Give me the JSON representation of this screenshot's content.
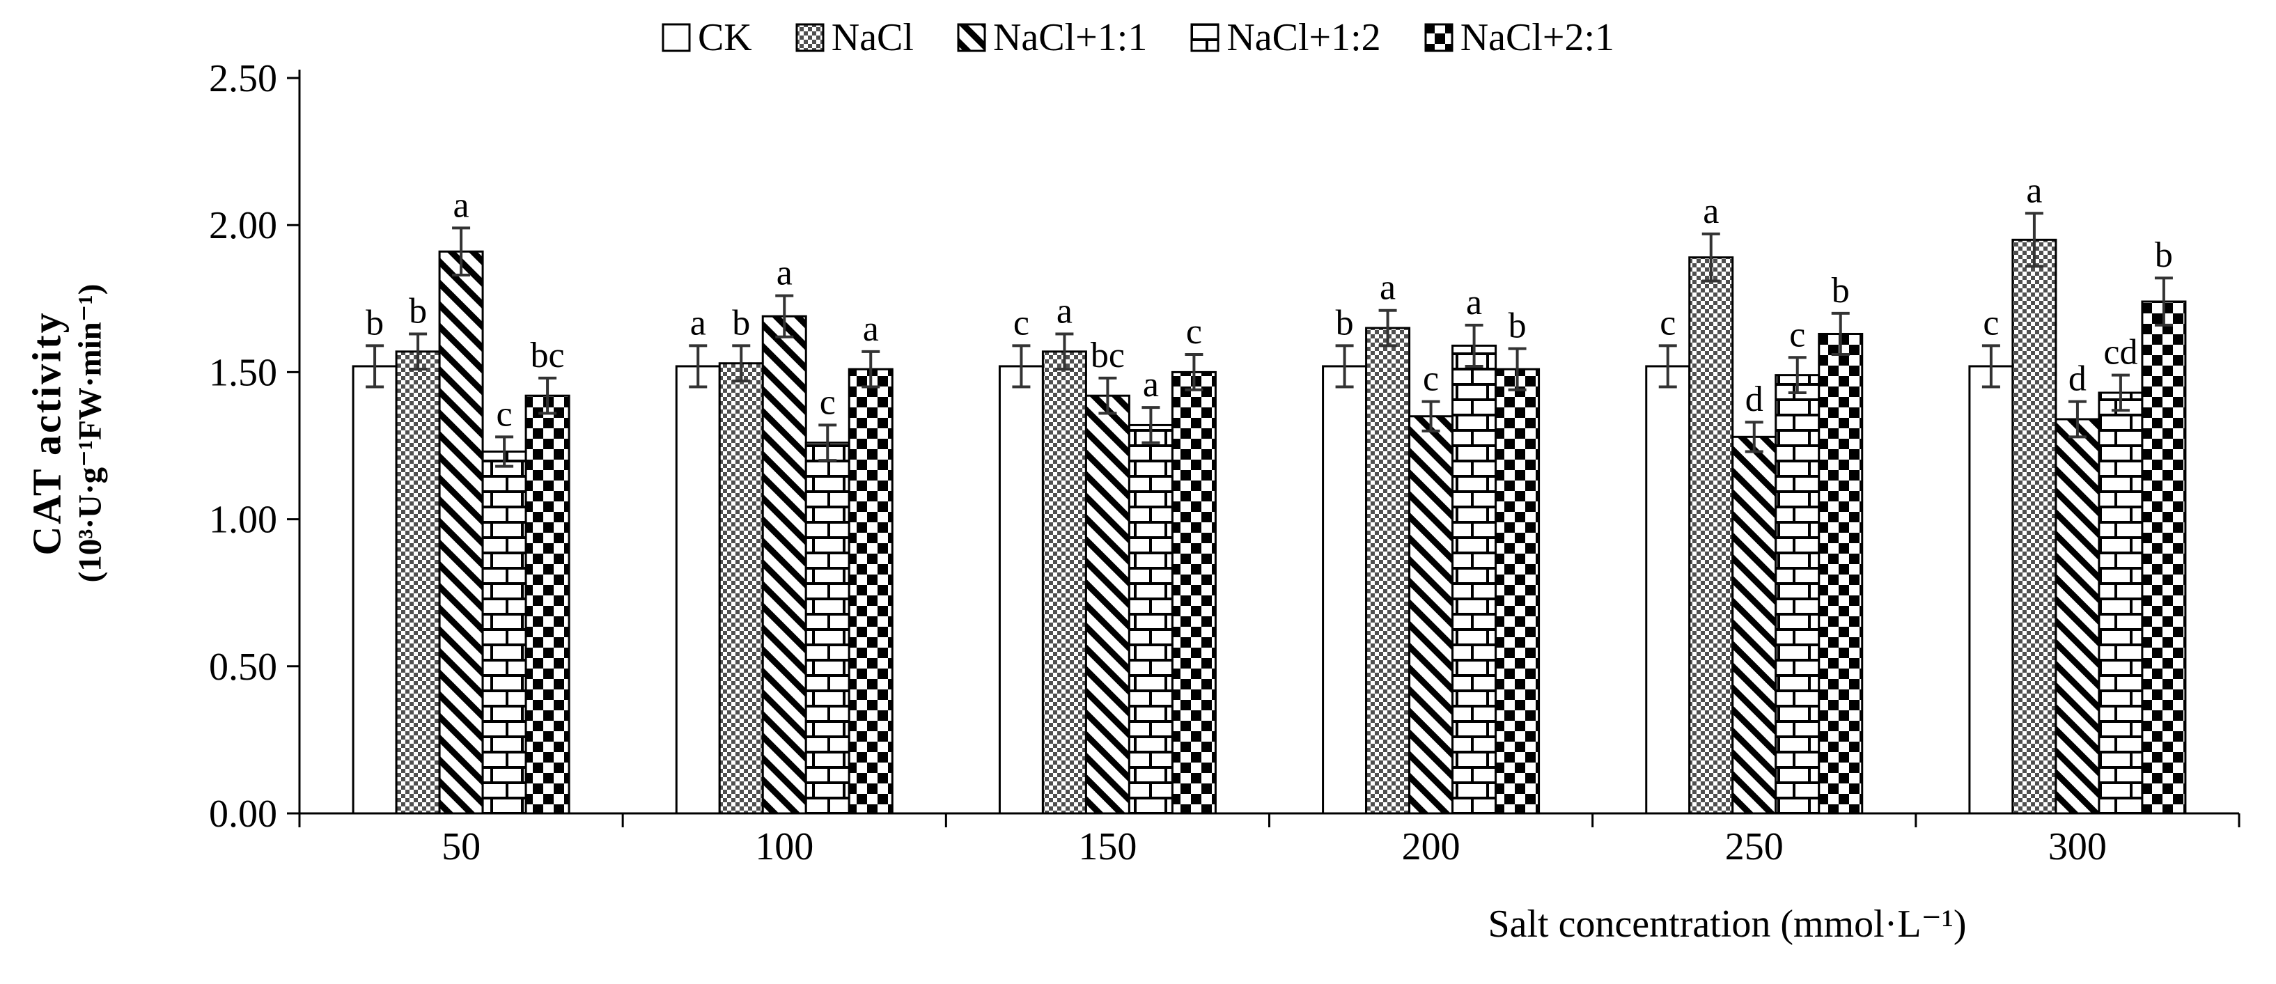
{
  "figure": {
    "description": "Grouped bar chart of CAT activity under different salt treatments"
  },
  "axes": {
    "y_title_line1": "CAT activity",
    "y_title_line2": "(10³·U·g⁻¹FW·min⁻¹)",
    "x_title": "Salt concentration (mmol·L⁻¹)",
    "y_ticks": [
      "0.00",
      "0.50",
      "1.00",
      "1.50",
      "2.00",
      "2.50"
    ],
    "x_ticks": [
      "50",
      "100",
      "150",
      "200",
      "250",
      "300"
    ]
  },
  "legend": {
    "items": [
      {
        "label": "CK",
        "pattern": "plain"
      },
      {
        "label": "NaCl",
        "pattern": "fine-checker"
      },
      {
        "label": "NaCl+1:1",
        "pattern": "diagonal"
      },
      {
        "label": "NaCl+1:2",
        "pattern": "brick"
      },
      {
        "label": "NaCl+2:1",
        "pattern": "checkerboard"
      }
    ]
  },
  "chart_data": {
    "type": "bar",
    "title": "",
    "categories": [
      "50",
      "100",
      "150",
      "200",
      "250",
      "300"
    ],
    "xlabel": "Salt concentration (mmol·L⁻¹)",
    "ylabel": "CAT activity (10³·U·g⁻¹FW·min⁻¹)",
    "ylim": [
      0,
      2.5
    ],
    "ytick_step": 0.5,
    "grid": false,
    "legend_position": "top-center",
    "error_bars": true,
    "bar_stroke": "#000000",
    "bar_fill_base": "#ffffff",
    "series": [
      {
        "name": "CK",
        "pattern": "plain",
        "values": [
          1.52,
          1.52,
          1.52,
          1.52,
          1.52,
          1.52
        ],
        "errors": [
          0.07,
          0.07,
          0.07,
          0.07,
          0.07,
          0.07
        ],
        "sig_letters": [
          "b",
          "a",
          "c",
          "b",
          "c",
          "c"
        ]
      },
      {
        "name": "NaCl",
        "pattern": "fine-checker",
        "values": [
          1.57,
          1.53,
          1.57,
          1.65,
          1.89,
          1.95
        ],
        "errors": [
          0.06,
          0.06,
          0.06,
          0.06,
          0.08,
          0.09
        ],
        "sig_letters": [
          "b",
          "b",
          "a",
          "a",
          "a",
          "a"
        ]
      },
      {
        "name": "NaCl+1:1",
        "pattern": "diagonal",
        "values": [
          1.91,
          1.69,
          1.42,
          1.35,
          1.28,
          1.34
        ],
        "errors": [
          0.08,
          0.07,
          0.06,
          0.05,
          0.05,
          0.06
        ],
        "sig_letters": [
          "a",
          "a",
          "bc",
          "c",
          "d",
          "d"
        ]
      },
      {
        "name": "NaCl+1:2",
        "pattern": "brick",
        "values": [
          1.23,
          1.26,
          1.32,
          1.59,
          1.49,
          1.43
        ],
        "errors": [
          0.05,
          0.06,
          0.06,
          0.07,
          0.06,
          0.06
        ],
        "sig_letters": [
          "c",
          "c",
          "a",
          "a",
          "c",
          "cd"
        ]
      },
      {
        "name": "NaCl+2:1",
        "pattern": "checkerboard",
        "values": [
          1.42,
          1.51,
          1.5,
          1.51,
          1.63,
          1.74
        ],
        "errors": [
          0.06,
          0.06,
          0.06,
          0.07,
          0.07,
          0.08
        ],
        "sig_letters": [
          "bc",
          "a",
          "c",
          "b",
          "b",
          "b"
        ]
      }
    ]
  }
}
